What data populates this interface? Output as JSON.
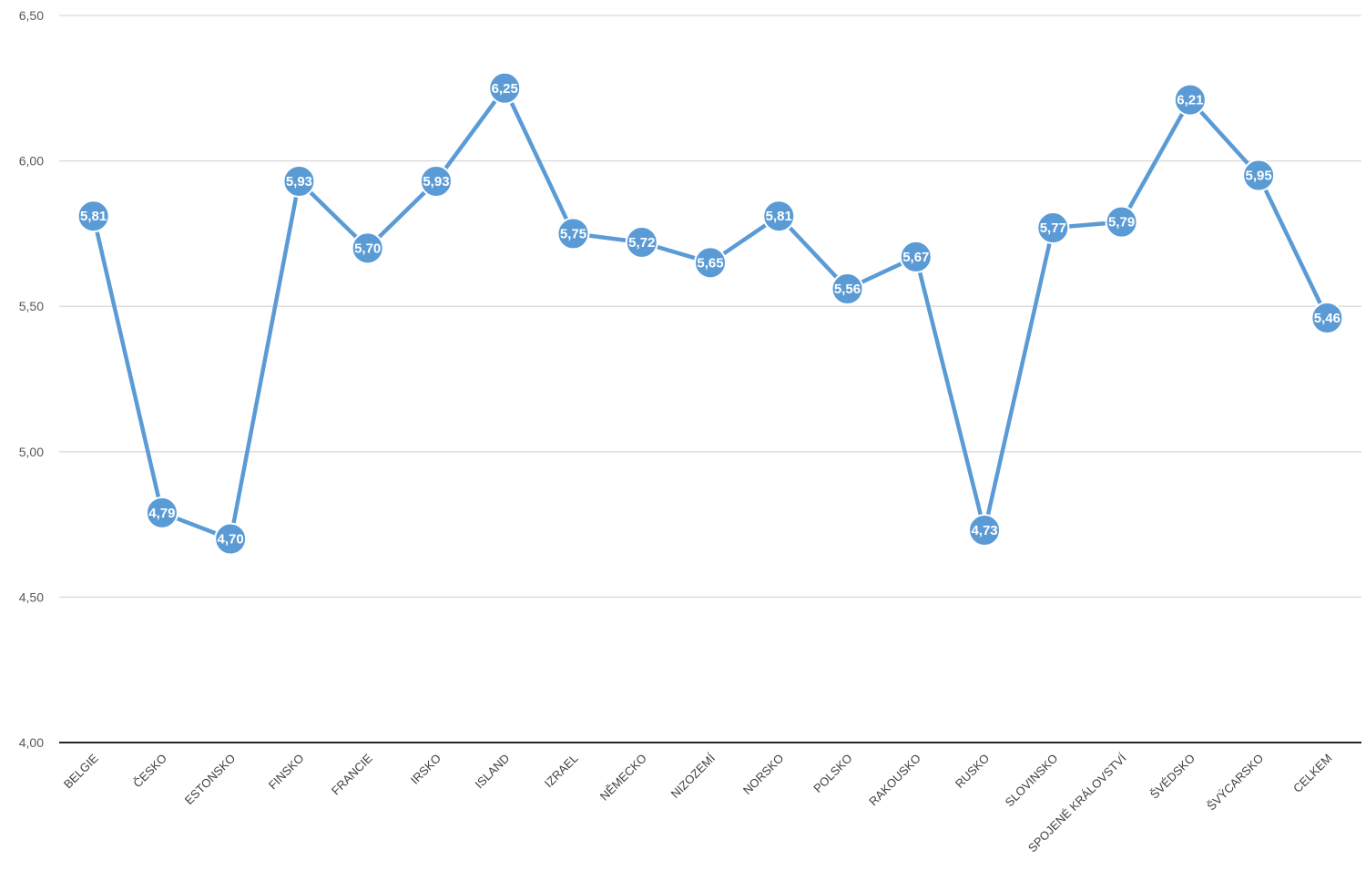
{
  "chart_data": {
    "type": "line",
    "categories": [
      "BELGIE",
      "ČESKO",
      "ESTONSKO",
      "FINSKO",
      "FRANCIE",
      "IRSKO",
      "ISLAND",
      "IZRAEL",
      "NĚMECKO",
      "NIZOZEMÍ",
      "NORSKO",
      "POLSKO",
      "RAKOUSKO",
      "RUSKO",
      "SLOVINSKO",
      "SPOJENÉ KRÁLOVSTVÍ",
      "ŠVÉDSKO",
      "ŠVÝCARSKO",
      "CELKEM"
    ],
    "values": [
      5.81,
      4.79,
      4.7,
      5.93,
      5.7,
      5.93,
      6.25,
      5.75,
      5.72,
      5.65,
      5.81,
      5.56,
      5.67,
      4.73,
      5.77,
      5.79,
      6.21,
      5.95,
      5.46
    ],
    "data_labels": [
      "5,81",
      "4,79",
      "4,70",
      "5,93",
      "5,70",
      "5,93",
      "6,25",
      "5,75",
      "5,72",
      "5,65",
      "5,81",
      "5,56",
      "5,67",
      "4,73",
      "5,77",
      "5,79",
      "6,21",
      "5,95",
      "5,46"
    ],
    "ylim": [
      4,
      6.5
    ],
    "yticks": [
      4,
      4.5,
      5,
      5.5,
      6,
      6.5
    ],
    "ytick_labels": [
      "4,00",
      "4,50",
      "5,00",
      "5,50",
      "6,00",
      "6,50"
    ],
    "grid": true,
    "legend": "none",
    "markers": "circle",
    "colors": {
      "line": "#5b9bd5",
      "marker_fill": "#5b9bd5",
      "marker_stroke": "#ffffff",
      "grid": "#d9d9d9",
      "axis": "#262626"
    }
  }
}
